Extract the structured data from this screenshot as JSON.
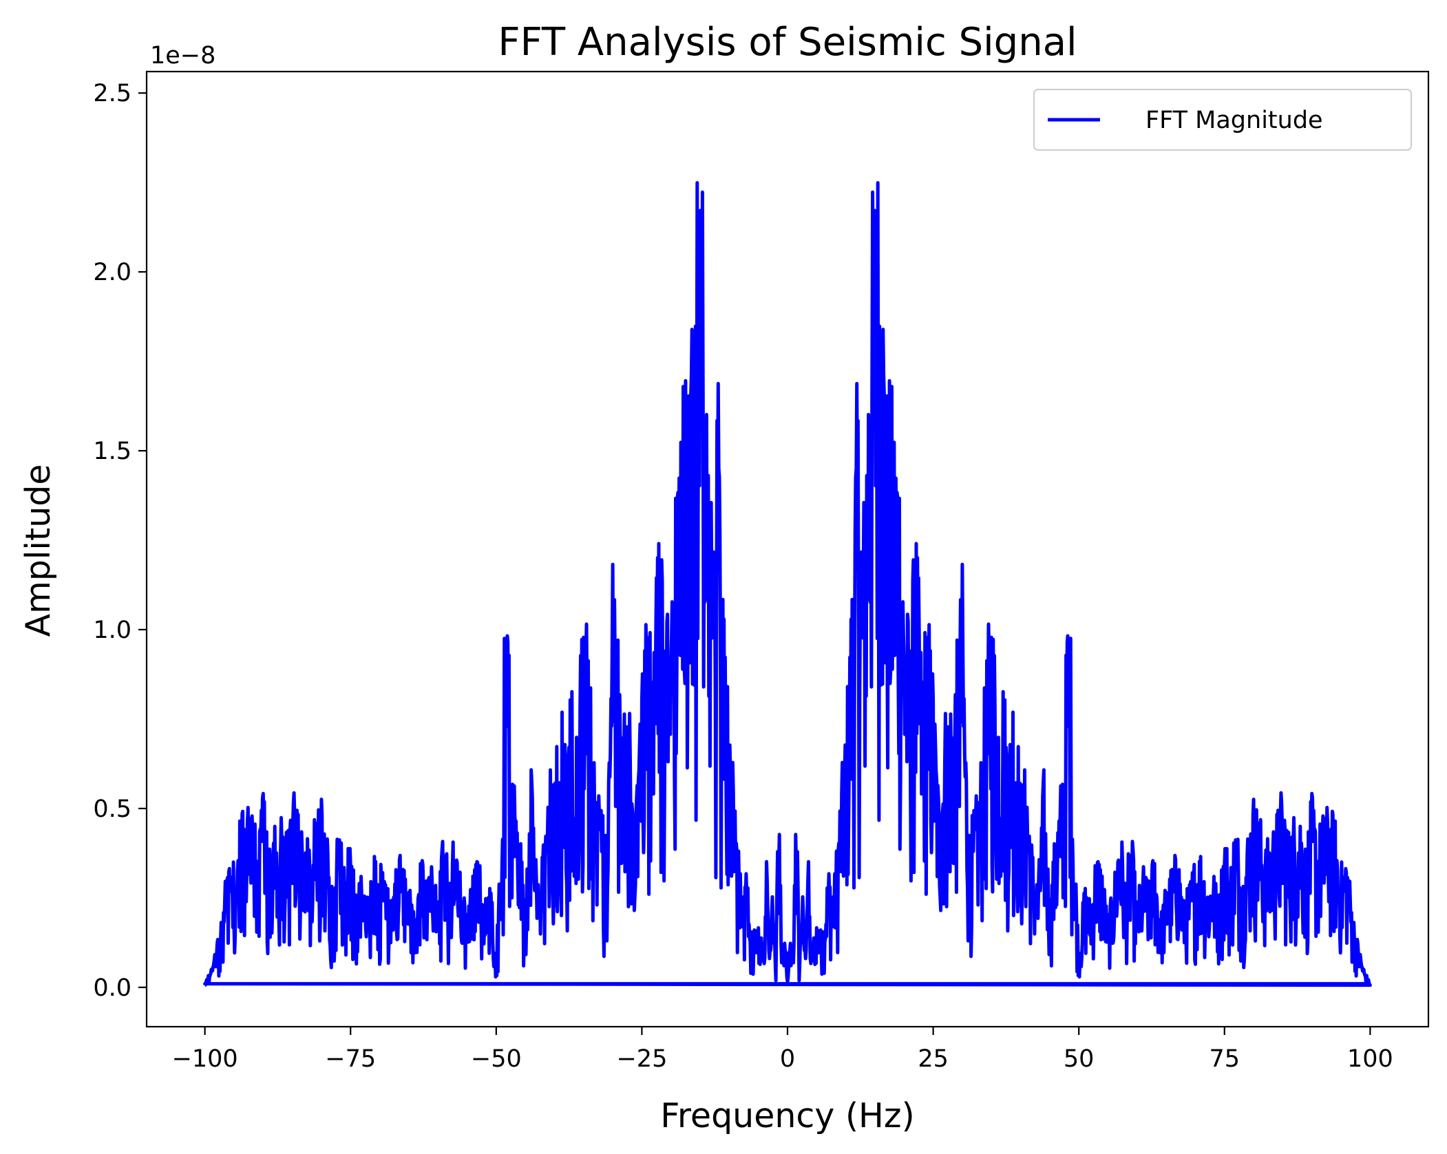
{
  "chart_data": {
    "type": "line",
    "title": "FFT Analysis of Seismic Signal",
    "xlabel": "Frequency (Hz)",
    "ylabel": "Amplitude",
    "y_offset_label": "1e−8",
    "xlim": [
      -110,
      110
    ],
    "ylim": [
      -0.11,
      2.56
    ],
    "x_ticks": [
      -100,
      -75,
      -50,
      -25,
      0,
      25,
      50,
      75,
      100
    ],
    "x_tick_labels": [
      "−100",
      "−75",
      "−50",
      "−25",
      "0",
      "25",
      "50",
      "75",
      "100"
    ],
    "y_ticks": [
      0.0,
      0.5,
      1.0,
      1.5,
      2.0,
      2.5
    ],
    "y_tick_labels": [
      "0.0",
      "0.5",
      "1.0",
      "1.5",
      "2.0",
      "2.5"
    ],
    "grid": false,
    "legend_position": "upper right",
    "series": [
      {
        "name": "FFT Magnitude",
        "color": "#0000ff",
        "x": [
          0,
          0.5,
          1,
          1.5,
          2,
          2.5,
          3,
          3.5,
          4,
          5,
          6,
          7,
          8,
          9,
          10,
          11,
          12,
          13,
          14,
          15,
          16,
          17,
          18,
          19,
          20,
          21,
          22,
          23,
          24,
          25,
          26,
          27,
          28,
          29,
          30,
          31,
          32,
          33,
          34,
          35,
          36,
          37,
          38,
          39,
          40,
          41,
          42,
          43,
          44,
          45,
          46,
          47,
          47.5,
          48,
          48.5,
          49,
          50,
          51,
          52,
          53,
          54,
          55,
          56,
          57,
          58,
          59,
          60,
          61,
          62,
          63,
          64,
          65,
          66,
          67,
          68,
          69,
          70,
          71,
          72,
          73,
          74,
          75,
          76,
          77,
          78,
          79,
          80,
          81,
          82,
          83,
          84,
          85,
          86,
          87,
          88,
          89,
          90,
          91,
          92,
          93,
          94,
          95,
          96,
          97,
          98,
          99,
          100
        ],
        "y": [
          0.02,
          0.15,
          0.08,
          0.68,
          0.05,
          0.3,
          0.12,
          0.42,
          0.1,
          0.2,
          0.15,
          0.35,
          0.3,
          0.55,
          0.75,
          1.15,
          1.75,
          1.35,
          2.0,
          2.43,
          2.35,
          1.72,
          1.7,
          1.65,
          1.2,
          1.0,
          1.35,
          0.95,
          1.1,
          0.9,
          0.55,
          0.8,
          0.85,
          0.95,
          1.2,
          0.45,
          0.5,
          0.6,
          0.9,
          1.15,
          0.85,
          0.9,
          0.7,
          0.95,
          0.55,
          0.65,
          0.4,
          0.3,
          0.62,
          0.25,
          0.45,
          0.6,
          0.75,
          1.08,
          1.12,
          0.55,
          0.1,
          0.3,
          0.25,
          0.4,
          0.35,
          0.2,
          0.3,
          0.5,
          0.3,
          0.45,
          0.25,
          0.35,
          0.3,
          0.4,
          0.2,
          0.3,
          0.35,
          0.4,
          0.25,
          0.3,
          0.38,
          0.4,
          0.3,
          0.35,
          0.25,
          0.45,
          0.35,
          0.5,
          0.3,
          0.45,
          0.55,
          0.5,
          0.4,
          0.45,
          0.5,
          0.58,
          0.45,
          0.5,
          0.52,
          0.4,
          0.55,
          0.45,
          0.5,
          0.52,
          0.48,
          0.35,
          0.4,
          0.22,
          0.12,
          0.05,
          0.01
        ],
        "symmetric": true
      }
    ]
  }
}
